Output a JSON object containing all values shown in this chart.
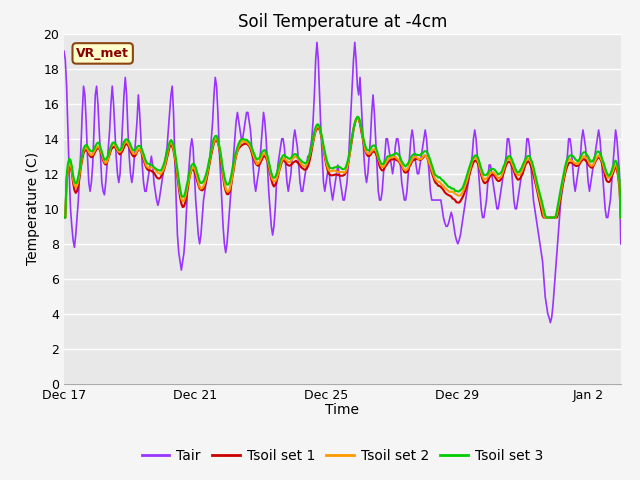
{
  "title": "Soil Temperature at -4cm",
  "xlabel": "Time",
  "ylabel": "Temperature (C)",
  "ylim": [
    0,
    20
  ],
  "xlim_days": [
    0,
    17
  ],
  "xtick_labels": [
    "Dec 17",
    "Dec 21",
    "Dec 25",
    "Dec 29",
    "Jan 2"
  ],
  "xtick_positions": [
    0,
    4,
    8,
    12,
    16
  ],
  "ytick_vals": [
    0,
    2,
    4,
    6,
    8,
    10,
    12,
    14,
    16,
    18,
    20
  ],
  "annotation_text": "VR_met",
  "line_colors": {
    "Tair": "#9933ff",
    "Tsoil set 1": "#cc0000",
    "Tsoil set 2": "#ff9900",
    "Tsoil set 3": "#00cc00"
  },
  "line_widths": {
    "Tair": 1.2,
    "Tsoil set 1": 1.5,
    "Tsoil set 2": 1.5,
    "Tsoil set 3": 1.5
  },
  "plot_bg_color": "#e8e8e8",
  "fig_bg_color": "#f5f5f5",
  "grid_color": "#ffffff",
  "title_fontsize": 12,
  "axis_label_fontsize": 10,
  "tick_fontsize": 9,
  "legend_fontsize": 10,
  "annotation_color": "#8B0000",
  "annotation_bg": "#ffffcc",
  "annotation_edge": "#8B4513",
  "tair_values": [
    19.0,
    18.5,
    17.0,
    14.5,
    12.0,
    10.0,
    9.0,
    8.2,
    7.8,
    8.5,
    9.5,
    10.5,
    12.0,
    13.5,
    15.5,
    17.0,
    16.5,
    15.0,
    13.0,
    11.5,
    11.0,
    11.5,
    12.5,
    14.5,
    16.5,
    17.0,
    16.0,
    14.5,
    13.0,
    11.5,
    11.0,
    10.8,
    11.5,
    12.5,
    13.5,
    14.5,
    16.0,
    17.0,
    16.0,
    14.5,
    13.0,
    12.0,
    11.5,
    12.0,
    13.5,
    15.0,
    16.5,
    17.5,
    16.5,
    14.5,
    13.0,
    12.0,
    11.5,
    12.0,
    13.0,
    14.0,
    15.0,
    16.5,
    15.5,
    14.0,
    12.5,
    11.5,
    11.0,
    11.0,
    11.5,
    12.0,
    12.5,
    13.0,
    12.5,
    11.5,
    11.0,
    10.5,
    10.2,
    10.5,
    11.0,
    11.5,
    12.0,
    12.5,
    13.0,
    13.5,
    14.5,
    15.5,
    16.5,
    17.0,
    15.5,
    13.0,
    10.5,
    8.5,
    7.5,
    7.0,
    6.5,
    7.0,
    7.5,
    8.5,
    10.0,
    11.5,
    12.5,
    13.5,
    14.0,
    13.5,
    12.0,
    10.5,
    9.5,
    8.5,
    8.0,
    8.5,
    9.5,
    10.5,
    11.0,
    11.5,
    12.0,
    12.5,
    13.0,
    14.0,
    15.0,
    16.5,
    17.5,
    17.0,
    15.5,
    13.5,
    12.0,
    10.5,
    9.0,
    8.0,
    7.5,
    8.0,
    9.0,
    10.0,
    11.0,
    12.0,
    13.0,
    14.0,
    15.0,
    15.5,
    15.0,
    14.5,
    14.0,
    14.0,
    14.5,
    15.0,
    15.5,
    15.5,
    15.0,
    14.5,
    13.5,
    12.5,
    11.5,
    11.0,
    11.5,
    12.0,
    12.5,
    13.5,
    14.5,
    15.5,
    15.0,
    14.0,
    12.5,
    11.0,
    10.0,
    9.0,
    8.5,
    9.0,
    10.0,
    11.5,
    12.5,
    13.0,
    13.5,
    14.0,
    14.0,
    13.5,
    12.5,
    11.5,
    11.0,
    11.5,
    12.0,
    13.0,
    14.0,
    14.5,
    14.0,
    13.5,
    12.5,
    11.5,
    11.0,
    11.0,
    11.5,
    12.0,
    12.5,
    13.0,
    13.0,
    13.5,
    14.0,
    15.0,
    16.5,
    18.5,
    19.5,
    18.5,
    16.5,
    14.5,
    13.0,
    11.5,
    11.0,
    11.5,
    12.0,
    12.5,
    11.5,
    11.0,
    10.5,
    11.0,
    11.5,
    12.0,
    12.5,
    12.0,
    11.5,
    11.0,
    10.5,
    10.5,
    11.0,
    11.5,
    12.5,
    14.0,
    15.5,
    17.0,
    18.5,
    19.5,
    18.5,
    17.0,
    16.5,
    17.5,
    16.0,
    14.5,
    13.0,
    12.0,
    11.5,
    12.0,
    13.0,
    14.0,
    15.5,
    16.5,
    15.5,
    14.0,
    12.5,
    11.0,
    10.5,
    10.5,
    11.0,
    12.0,
    13.0,
    14.0,
    14.0,
    13.5,
    13.0,
    12.5,
    12.0,
    12.5,
    13.5,
    14.0,
    14.0,
    13.5,
    12.5,
    11.5,
    11.0,
    10.5,
    10.5,
    11.0,
    12.0,
    13.0,
    14.0,
    14.5,
    14.0,
    13.0,
    12.5,
    12.0,
    12.0,
    12.5,
    13.0,
    13.5,
    14.0,
    14.5,
    14.0,
    13.0,
    12.0,
    11.0,
    10.5,
    10.5,
    10.5,
    10.5,
    10.5,
    10.5,
    10.5,
    10.5,
    10.0,
    9.5,
    9.2,
    9.0,
    9.0,
    9.2,
    9.5,
    9.8,
    9.5,
    9.0,
    8.5,
    8.2,
    8.0,
    8.2,
    8.5,
    9.0,
    9.5,
    10.0,
    10.5,
    11.0,
    11.5,
    12.0,
    12.5,
    13.0,
    14.0,
    14.5,
    14.0,
    13.0,
    12.0,
    11.0,
    10.0,
    9.5,
    9.5,
    10.0,
    10.5,
    11.5,
    12.5,
    12.5,
    12.0,
    11.5,
    11.0,
    10.5,
    10.0,
    10.0,
    10.5,
    11.0,
    11.5,
    12.0,
    12.5,
    13.0,
    14.0,
    14.0,
    13.5,
    12.5,
    11.5,
    10.5,
    10.0,
    10.0,
    10.5,
    11.0,
    11.5,
    12.0,
    12.0,
    12.5,
    13.0,
    14.0,
    14.0,
    13.5,
    12.5,
    11.5,
    10.5,
    10.0,
    9.5,
    9.0,
    8.5,
    8.0,
    7.5,
    7.0,
    6.0,
    5.0,
    4.5,
    4.0,
    3.8,
    3.5,
    3.8,
    4.5,
    5.5,
    6.5,
    7.5,
    8.5,
    9.5,
    10.5,
    11.0,
    11.5,
    12.0,
    12.5,
    13.0,
    14.0,
    14.0,
    13.5,
    12.5,
    11.5,
    11.0,
    11.5,
    12.0,
    12.5,
    13.0,
    14.0,
    14.5,
    14.0,
    13.5,
    12.5,
    11.5,
    11.0,
    11.5,
    12.0,
    12.5,
    13.0,
    13.5,
    14.0,
    14.5,
    14.0,
    13.0,
    12.0,
    11.0,
    10.0,
    9.5,
    9.5,
    10.0,
    10.5,
    11.5,
    12.5,
    13.5,
    14.5,
    14.0,
    13.0,
    12.0,
    8.0
  ]
}
